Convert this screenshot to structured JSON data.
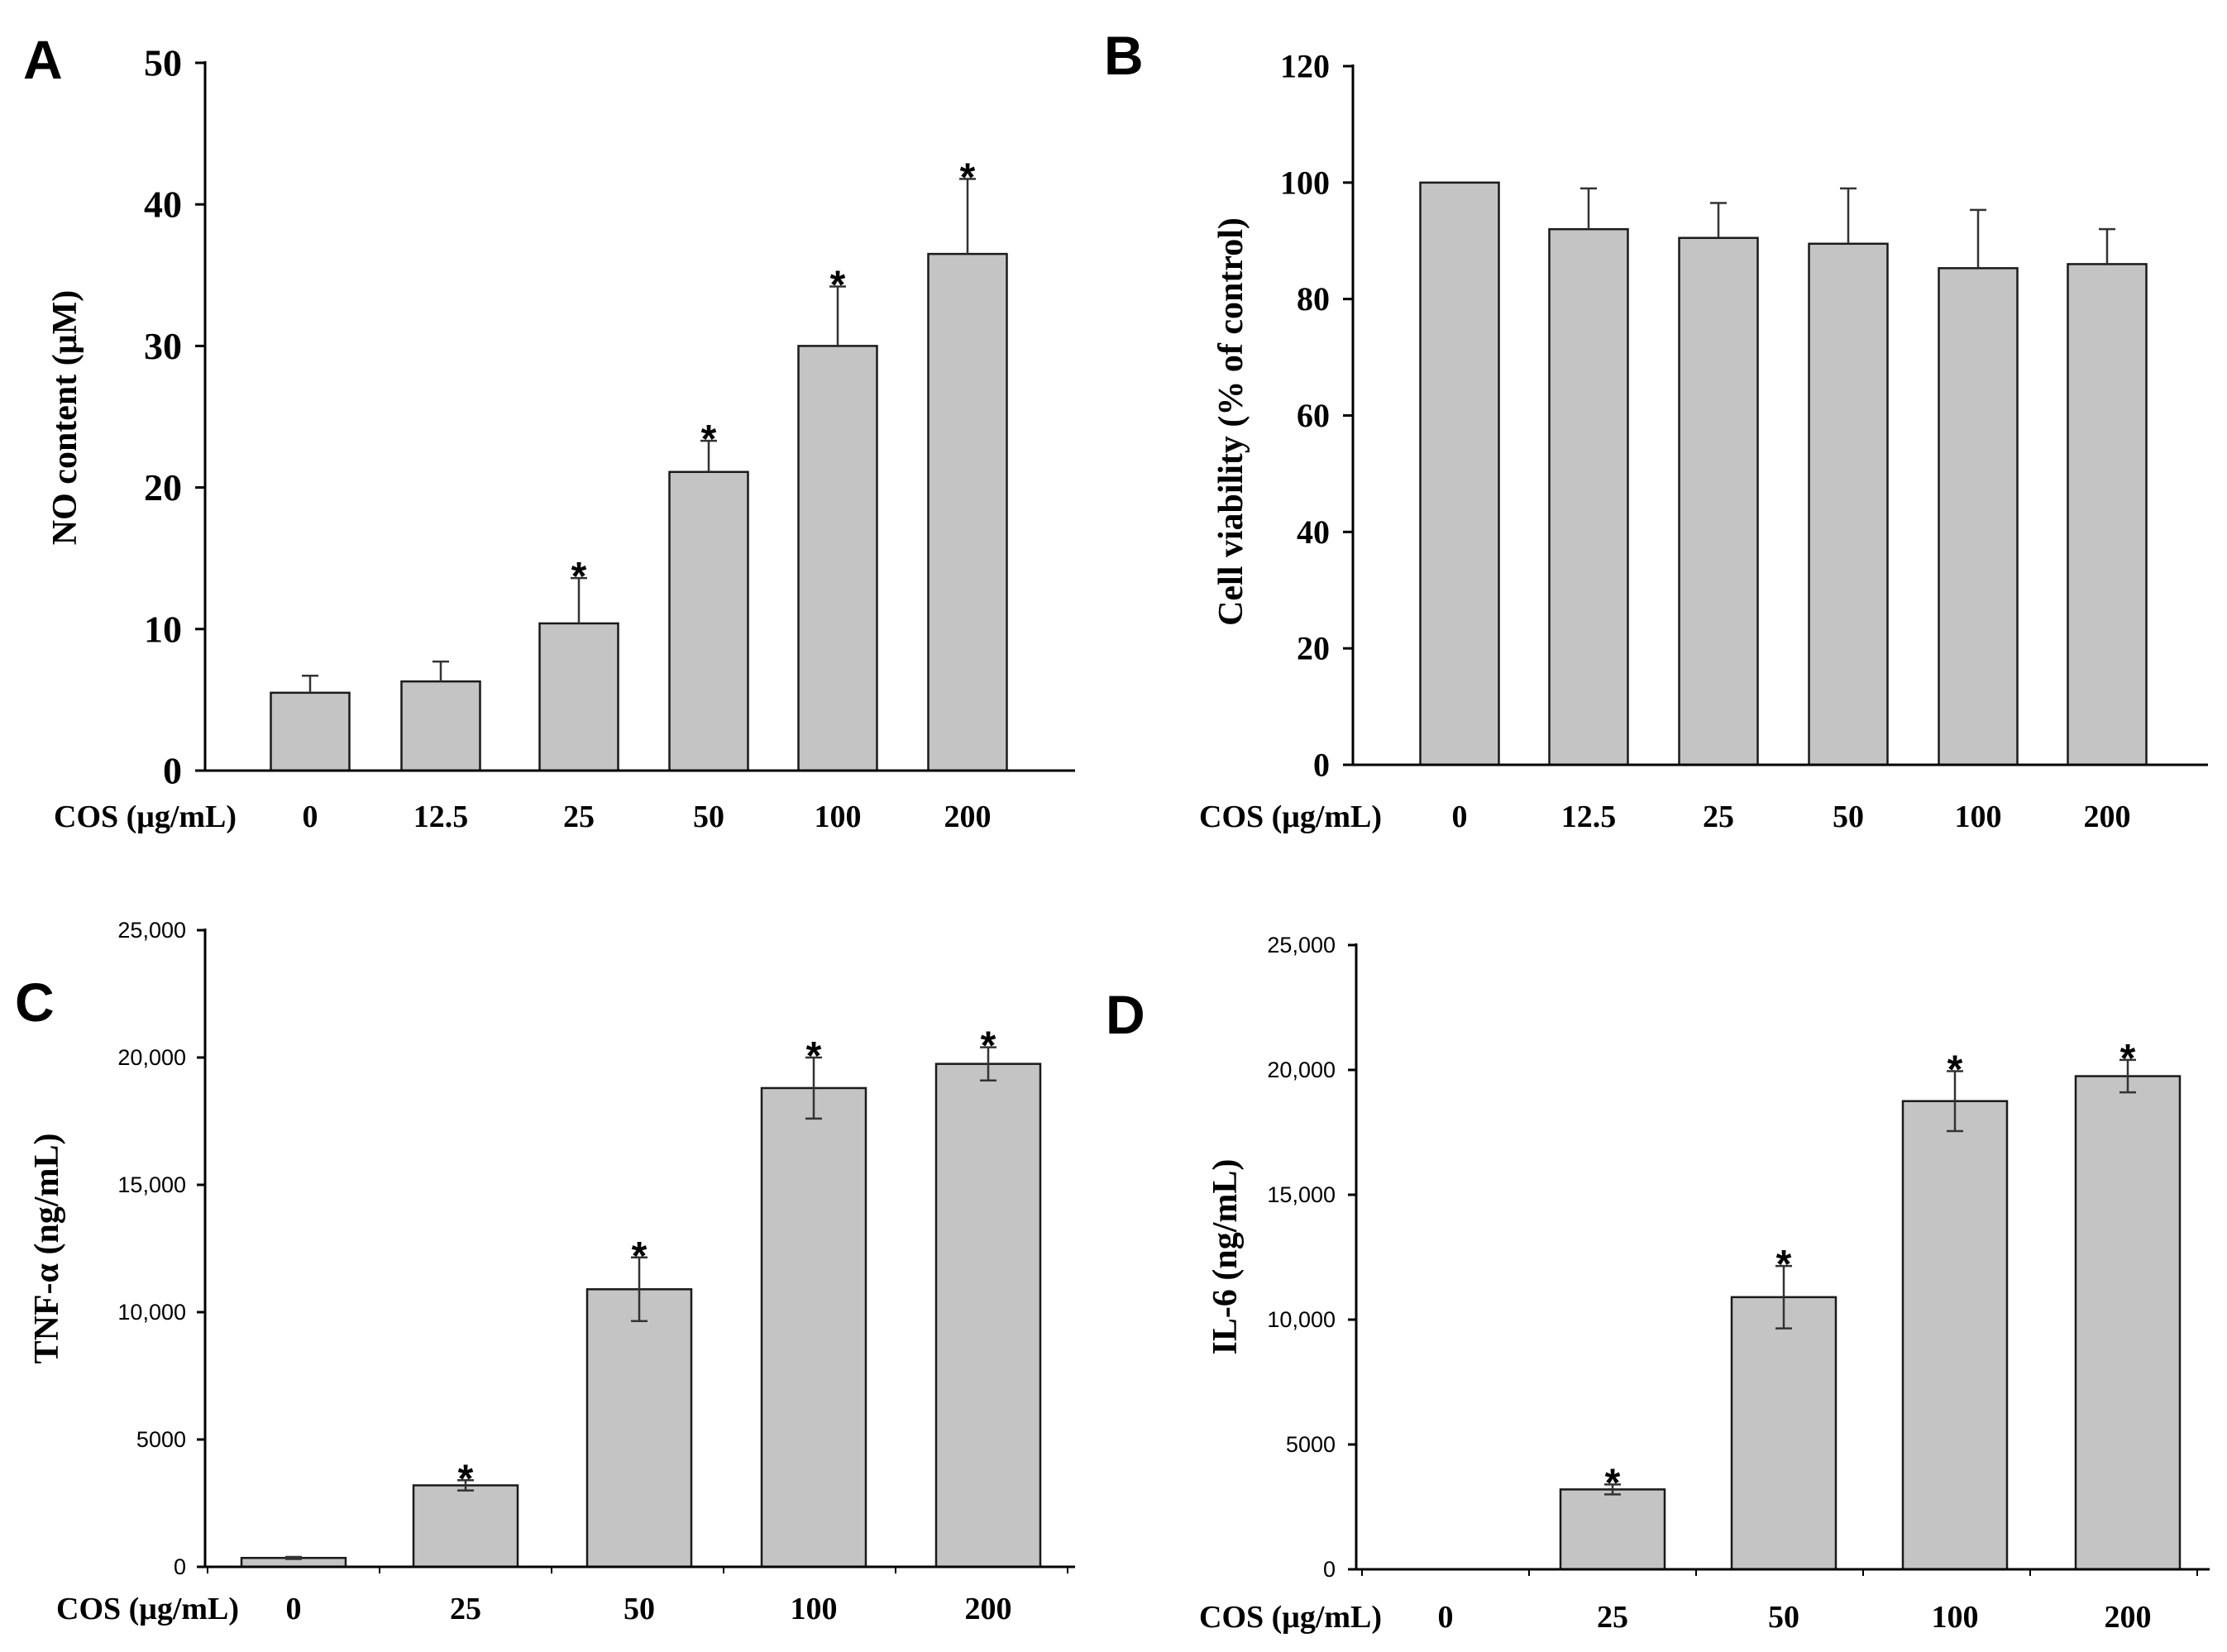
{
  "chart_data": [
    {
      "id": "A",
      "type": "bar",
      "panel_label": "A",
      "xlabel": "COS (μg/mL)",
      "ylabel": "NO content (μM)",
      "categories": [
        "0",
        "12.5",
        "25",
        "50",
        "100",
        "200"
      ],
      "values": [
        5.5,
        6.3,
        10.4,
        21.1,
        30.0,
        36.5
      ],
      "errors": [
        1.2,
        1.4,
        3.2,
        2.2,
        4.2,
        5.3
      ],
      "significance": [
        "",
        "",
        "*",
        "*",
        "*",
        "*"
      ],
      "ylim": [
        0,
        50
      ],
      "yticks": [
        0,
        10,
        20,
        30,
        40,
        50
      ],
      "ytick_labels": [
        "0",
        "10",
        "20",
        "30",
        "40",
        "50"
      ]
    },
    {
      "id": "B",
      "type": "bar",
      "panel_label": "B",
      "xlabel": "COS (μg/mL)",
      "ylabel": "Cell viability (% of control)",
      "categories": [
        "0",
        "12.5",
        "25",
        "50",
        "100",
        "200"
      ],
      "values": [
        100,
        92,
        90.5,
        89.5,
        85.3,
        86
      ],
      "errors": [
        0,
        7,
        6,
        9.5,
        10,
        6
      ],
      "significance": [
        "",
        "",
        "",
        "",
        "",
        ""
      ],
      "ylim": [
        0,
        120
      ],
      "yticks": [
        0,
        20,
        40,
        60,
        80,
        100,
        120
      ],
      "ytick_labels": [
        "0",
        "20",
        "40",
        "60",
        "80",
        "100",
        "120"
      ]
    },
    {
      "id": "C",
      "type": "bar",
      "panel_label": "C",
      "xlabel": "COS (μg/mL)",
      "ylabel": "TNF-α (ng/mL)",
      "categories": [
        "0",
        "25",
        "50",
        "100",
        "200"
      ],
      "values": [
        350,
        3200,
        10900,
        18800,
        19750
      ],
      "errors": [
        40,
        200,
        1250,
        1200,
        650
      ],
      "significance": [
        "",
        "*",
        "*",
        "*",
        "*"
      ],
      "ylim": [
        0,
        25000
      ],
      "yticks": [
        0,
        5000,
        10000,
        15000,
        20000,
        25000
      ],
      "ytick_labels": [
        "0",
        "5000",
        "10,000",
        "15,000",
        "20,000",
        "25,000"
      ]
    },
    {
      "id": "D",
      "type": "bar",
      "panel_label": "D",
      "xlabel": "COS (μg/mL)",
      "ylabel": "IL-6 (ng/mL)",
      "categories": [
        "0",
        "25",
        "50",
        "100",
        "200"
      ],
      "values": [
        0,
        3200,
        10900,
        18750,
        19750
      ],
      "errors": [
        0,
        200,
        1250,
        1200,
        650
      ],
      "significance": [
        "",
        "*",
        "*",
        "*",
        "*"
      ],
      "ylim": [
        0,
        25000
      ],
      "yticks": [
        0,
        5000,
        10000,
        15000,
        20000,
        25000
      ],
      "ytick_labels": [
        "0",
        "5000",
        "10,000",
        "15,000",
        "20,000",
        "25,000"
      ]
    }
  ],
  "style": {
    "bar_fill": "#c4c4c4",
    "bar_stroke": "#1a1a1a",
    "axis_color": "#000000",
    "error_color": "#333333"
  }
}
